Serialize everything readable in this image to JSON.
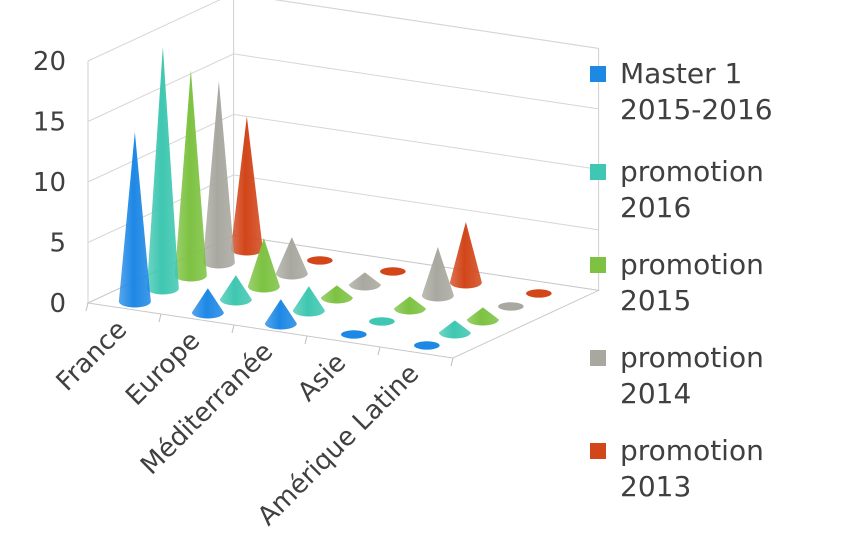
{
  "chart_data": {
    "type": "bar",
    "subtype": "3d-cone",
    "categories": [
      "France",
      "Europe",
      "Méditerranée",
      "Asie",
      "Amérique Latine"
    ],
    "series": [
      {
        "name": "Master 1 2015-2016",
        "color": "#1E88E5",
        "values": [
          14,
          2,
          2,
          0,
          0
        ]
      },
      {
        "name": "promotion 2016",
        "color": "#3FC7B1",
        "values": [
          20,
          2,
          2,
          0,
          1
        ]
      },
      {
        "name": "promotion 2015",
        "color": "#7DC242",
        "values": [
          17,
          4,
          1,
          1,
          1
        ]
      },
      {
        "name": "promotion 2014",
        "color": "#A8A8A0",
        "values": [
          15,
          3,
          1,
          4,
          0
        ]
      },
      {
        "name": "promotion 2013",
        "color": "#D2461A",
        "values": [
          11,
          0,
          0,
          5,
          0
        ]
      }
    ],
    "yticks": [
      0,
      5,
      10,
      15,
      20
    ],
    "ylim": [
      0,
      20
    ],
    "grid": true,
    "legend": "right"
  }
}
